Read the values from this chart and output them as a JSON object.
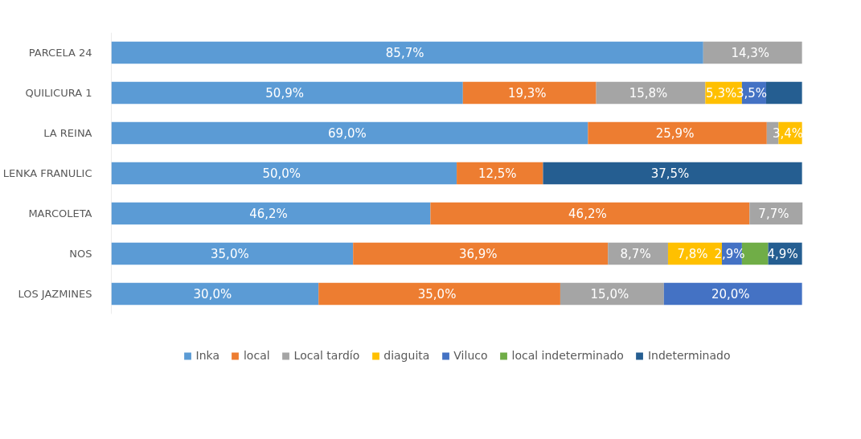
{
  "chart_data": {
    "type": "bar",
    "orientation": "horizontal",
    "stacked": true,
    "categories": [
      "PARCELA 24",
      "QUILICURA 1",
      "LA REINA",
      "LENKA FRANULIC",
      "MARCOLETA",
      "NOS",
      "LOS JAZMINES"
    ],
    "tick_labels": "y",
    "legend": "bottom",
    "series": [
      {
        "name": "Inka",
        "color": "#5b9bd5",
        "values": [
          85.7,
          50.9,
          69.0,
          50.0,
          46.2,
          35.0,
          30.0
        ],
        "value_labels": [
          "85,7%",
          "50,9%",
          "69,0%",
          "50,0%",
          "46,2%",
          "35,0%",
          "30,0%"
        ]
      },
      {
        "name": "local",
        "color": "#ed7d31",
        "values": [
          null,
          19.3,
          25.9,
          12.5,
          46.2,
          36.9,
          35.0
        ],
        "value_labels": [
          null,
          "19,3%",
          "25,9%",
          "12,5%",
          "46,2%",
          "36,9%",
          "35,0%"
        ]
      },
      {
        "name": "Local tardío",
        "color": "#a5a5a5",
        "values": [
          14.3,
          15.8,
          1.7,
          null,
          7.7,
          8.7,
          15.0
        ],
        "value_labels": [
          "14,3%",
          "15,8%",
          null,
          null,
          "7,7%",
          "8,7%",
          "15,0%"
        ]
      },
      {
        "name": "diaguita",
        "color": "#ffc000",
        "values": [
          null,
          5.3,
          3.4,
          null,
          null,
          7.8,
          null
        ],
        "value_labels": [
          null,
          "5,3%",
          "3,4%",
          null,
          null,
          "7,8%",
          null
        ]
      },
      {
        "name": "Viluco",
        "color": "#4472c4",
        "values": [
          null,
          3.5,
          null,
          null,
          null,
          2.9,
          20.0
        ],
        "value_labels": [
          null,
          "3,5%",
          null,
          null,
          null,
          "2,9%",
          "20,0%"
        ]
      },
      {
        "name": "local indeterminado",
        "color": "#70ad47",
        "values": [
          null,
          null,
          null,
          null,
          null,
          3.8,
          null
        ],
        "value_labels": [
          null,
          null,
          null,
          null,
          null,
          null,
          null
        ]
      },
      {
        "name": "Indeterminado",
        "color": "#255e91",
        "values": [
          null,
          5.2,
          null,
          37.5,
          null,
          4.9,
          null
        ],
        "value_labels": [
          null,
          null,
          null,
          "37,5%",
          null,
          "4,9%",
          null
        ]
      }
    ]
  }
}
